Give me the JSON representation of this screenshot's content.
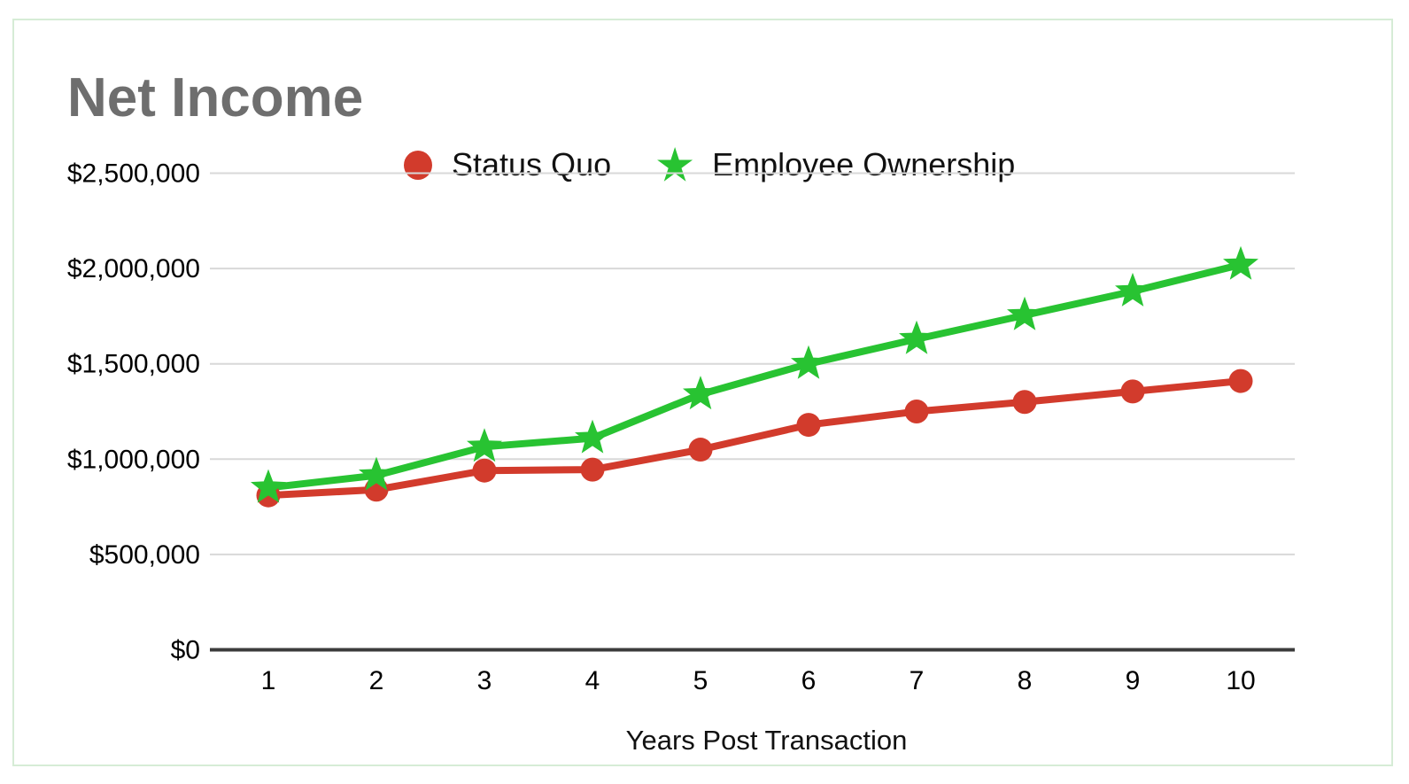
{
  "title": "Net Income",
  "legend": {
    "items": [
      {
        "label": "Status Quo",
        "marker": "circle-marker-icon"
      },
      {
        "label": "Employee Ownership",
        "marker": "star-marker-icon"
      }
    ]
  },
  "chart_data": {
    "type": "line",
    "title": "Net Income",
    "xlabel": "Years Post Transaction",
    "ylabel": "",
    "categories": [
      1,
      2,
      3,
      4,
      5,
      6,
      7,
      8,
      9,
      10
    ],
    "series": [
      {
        "name": "Status Quo",
        "color": "#d23b2c",
        "marker": "circle",
        "values": [
          810000,
          840000,
          940000,
          945000,
          1050000,
          1180000,
          1250000,
          1300000,
          1355000,
          1410000
        ]
      },
      {
        "name": "Employee Ownership",
        "color": "#28c332",
        "marker": "star",
        "values": [
          850000,
          915000,
          1065000,
          1110000,
          1340000,
          1500000,
          1630000,
          1755000,
          1880000,
          2020000
        ]
      }
    ],
    "ylim": [
      0,
      2500000
    ],
    "ytick_step": 500000,
    "ytick_labels": [
      "$0",
      "$500,000",
      "$1,000,000",
      "$1,500,000",
      "$2,000,000",
      "$2,500,000"
    ],
    "grid": true,
    "legend_position": "top",
    "colors": {
      "gridline": "#d8d8d8",
      "axis_line": "#3c3c3c",
      "title_text": "#6e6e6e",
      "label_text": "#000000"
    }
  }
}
